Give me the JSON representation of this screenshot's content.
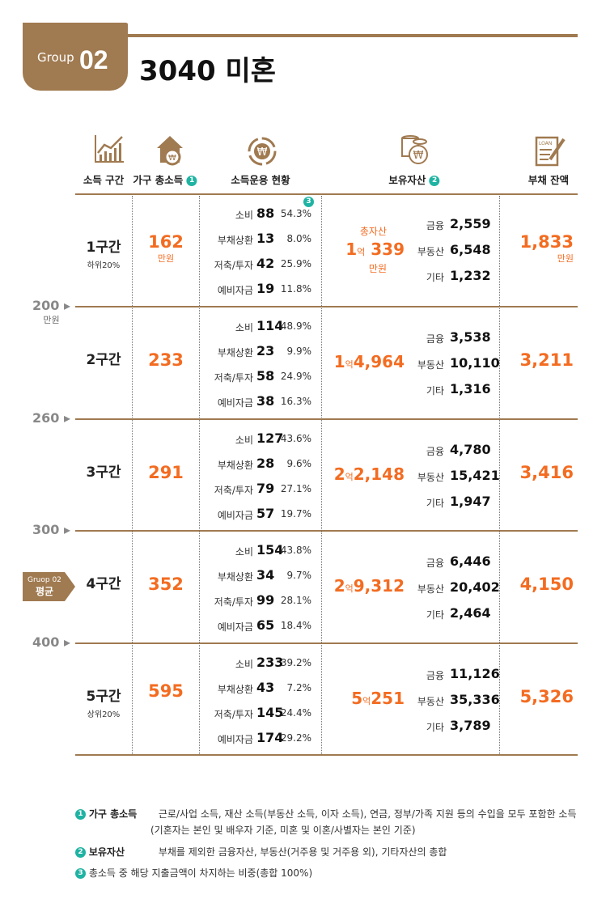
{
  "header": {
    "group_label": "Group",
    "group_num": "02",
    "title": "3040 미혼"
  },
  "columns": [
    {
      "label": "소득 구간",
      "icon": "rising-bar-chart-icon"
    },
    {
      "label": "가구 총소득",
      "note": "1",
      "icon": "house-won-icon"
    },
    {
      "label": "소득운용 현황",
      "icon": "won-cycle-icon"
    },
    {
      "label": "보유자산",
      "note": "2",
      "icon": "coin-stack-won-icon"
    },
    {
      "label": "부채 잔액",
      "icon": "loan-document-pen-icon"
    }
  ],
  "note3_marker": "3",
  "unit": "만원",
  "eok": "억",
  "total_asset_label": "총자산",
  "ticks": [
    {
      "value": "200",
      "unit": "만원"
    },
    {
      "value": "260"
    },
    {
      "value": "300"
    },
    {
      "value": "400"
    }
  ],
  "avg_badge": {
    "line1": "Gruop 02",
    "line2": "평균"
  },
  "rows": [
    {
      "band": "1구간",
      "band_sub": "하위20%",
      "income": "162",
      "use": [
        {
          "l": "소비",
          "v": "88",
          "p": "54.3%"
        },
        {
          "l": "부채상환",
          "v": "13",
          "p": "8.0%"
        },
        {
          "l": "저축/투자",
          "v": "42",
          "p": "25.9%"
        },
        {
          "l": "예비자금",
          "v": "19",
          "p": "11.8%"
        }
      ],
      "total_eok": "1",
      "total_rest": "339",
      "assets": [
        {
          "l": "금융",
          "v": "2,559"
        },
        {
          "l": "부동산",
          "v": "6,548"
        },
        {
          "l": "기타",
          "v": "1,232"
        }
      ],
      "debt": "1,833"
    },
    {
      "band": "2구간",
      "income": "233",
      "use": [
        {
          "l": "소비",
          "v": "114",
          "p": "48.9%"
        },
        {
          "l": "부채상환",
          "v": "23",
          "p": "9.9%"
        },
        {
          "l": "저축/투자",
          "v": "58",
          "p": "24.9%"
        },
        {
          "l": "예비자금",
          "v": "38",
          "p": "16.3%"
        }
      ],
      "total_eok": "1",
      "total_rest": "4,964",
      "assets": [
        {
          "l": "금융",
          "v": "3,538"
        },
        {
          "l": "부동산",
          "v": "10,110"
        },
        {
          "l": "기타",
          "v": "1,316"
        }
      ],
      "debt": "3,211"
    },
    {
      "band": "3구간",
      "income": "291",
      "use": [
        {
          "l": "소비",
          "v": "127",
          "p": "43.6%"
        },
        {
          "l": "부채상환",
          "v": "28",
          "p": "9.6%"
        },
        {
          "l": "저축/투자",
          "v": "79",
          "p": "27.1%"
        },
        {
          "l": "예비자금",
          "v": "57",
          "p": "19.7%"
        }
      ],
      "total_eok": "2",
      "total_rest": "2,148",
      "assets": [
        {
          "l": "금융",
          "v": "4,780"
        },
        {
          "l": "부동산",
          "v": "15,421"
        },
        {
          "l": "기타",
          "v": "1,947"
        }
      ],
      "debt": "3,416"
    },
    {
      "band": "4구간",
      "income": "352",
      "use": [
        {
          "l": "소비",
          "v": "154",
          "p": "43.8%"
        },
        {
          "l": "부채상환",
          "v": "34",
          "p": "9.7%"
        },
        {
          "l": "저축/투자",
          "v": "99",
          "p": "28.1%"
        },
        {
          "l": "예비자금",
          "v": "65",
          "p": "18.4%"
        }
      ],
      "total_eok": "2",
      "total_rest": "9,312",
      "assets": [
        {
          "l": "금융",
          "v": "6,446"
        },
        {
          "l": "부동산",
          "v": "20,402"
        },
        {
          "l": "기타",
          "v": "2,464"
        }
      ],
      "debt": "4,150"
    },
    {
      "band": "5구간",
      "band_sub": "상위20%",
      "income": "595",
      "use": [
        {
          "l": "소비",
          "v": "233",
          "p": "39.2%"
        },
        {
          "l": "부채상환",
          "v": "43",
          "p": "7.2%"
        },
        {
          "l": "저축/투자",
          "v": "145",
          "p": "24.4%"
        },
        {
          "l": "예비자금",
          "v": "174",
          "p": "29.2%"
        }
      ],
      "total_eok": "5",
      "total_rest": "251",
      "assets": [
        {
          "l": "금융",
          "v": "11,126"
        },
        {
          "l": "부동산",
          "v": "35,336"
        },
        {
          "l": "기타",
          "v": "3,789"
        }
      ],
      "debt": "5,326"
    }
  ],
  "footnotes": [
    {
      "n": "1",
      "key": "가구 총소득",
      "text": "근로/사업 소득, 재산 소득(부동산 소득, 이자 소득), 연금, 정부/가족 지원 등의 수입을 모두 포함한 소득",
      "text2": "(기혼자는 본인 및 배우자 기준, 미혼 및 이혼/사별자는 본인 기준)"
    },
    {
      "n": "2",
      "key": "보유자산",
      "text": "부채를 제외한 금융자산, 부동산(거주용 및 거주용 외), 기타자산의 총합"
    },
    {
      "n": "3",
      "text": "총소득 중 해당 지출금액이 차지하는 비중(총합 100%)"
    }
  ],
  "colors": {
    "brand": "#a07a50",
    "accent": "#f36c21",
    "note": "#1fb3a3"
  }
}
